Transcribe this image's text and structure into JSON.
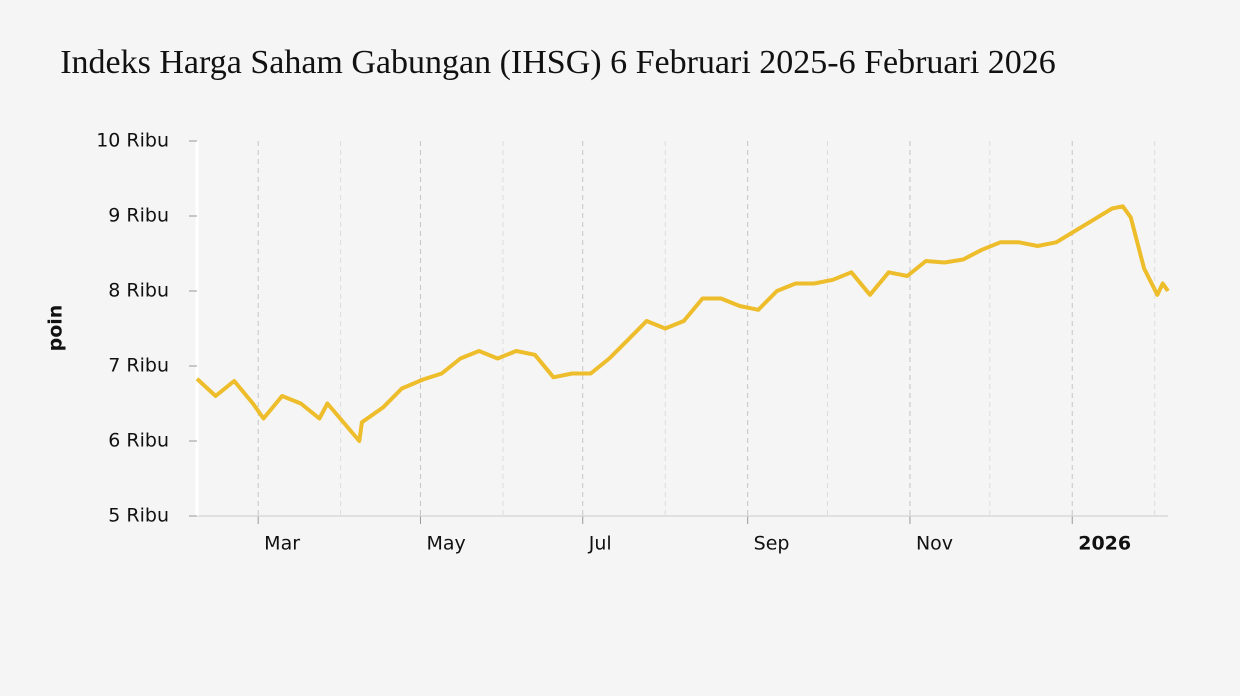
{
  "chart_data": {
    "type": "line",
    "title": "Indeks Harga Saham Gabungan (IHSG) 6 Februari 2025-6 Februari 2026",
    "ylabel": "poin",
    "color": "#eebd2b",
    "xlim": [
      "2025-02-06",
      "2026-02-06"
    ],
    "xticks": [
      {
        "value": "2025-03-01",
        "label": "Mar"
      },
      {
        "value": "2025-05-01",
        "label": "May"
      },
      {
        "value": "2025-07-01",
        "label": "Jul"
      },
      {
        "value": "2025-09-01",
        "label": "Sep"
      },
      {
        "value": "2025-11-01",
        "label": "Nov"
      },
      {
        "value": "2026-01-01",
        "label": "2026",
        "bold": true
      }
    ],
    "xminorticks": [
      "2025-04-01",
      "2025-06-01",
      "2025-08-01",
      "2025-10-01",
      "2025-12-01",
      "2026-02-01"
    ],
    "ylim": [
      5000,
      10000
    ],
    "yticks": [
      {
        "value": 5000,
        "label": "5 Ribu"
      },
      {
        "value": 6000,
        "label": "6 Ribu"
      },
      {
        "value": 7000,
        "label": "7 Ribu"
      },
      {
        "value": 8000,
        "label": "8 Ribu"
      },
      {
        "value": 9000,
        "label": "9 Ribu"
      },
      {
        "value": 10000,
        "label": "10 Ribu"
      }
    ],
    "x": [
      "2025-02-06",
      "2025-02-13",
      "2025-02-20",
      "2025-02-27",
      "2025-03-03",
      "2025-03-10",
      "2025-03-17",
      "2025-03-24",
      "2025-03-27",
      "2025-04-08",
      "2025-04-09",
      "2025-04-17",
      "2025-04-24",
      "2025-05-02",
      "2025-05-09",
      "2025-05-16",
      "2025-05-23",
      "2025-05-30",
      "2025-06-06",
      "2025-06-13",
      "2025-06-20",
      "2025-06-27",
      "2025-07-04",
      "2025-07-11",
      "2025-07-18",
      "2025-07-25",
      "2025-08-01",
      "2025-08-08",
      "2025-08-15",
      "2025-08-22",
      "2025-08-29",
      "2025-09-05",
      "2025-09-12",
      "2025-09-19",
      "2025-09-26",
      "2025-10-03",
      "2025-10-10",
      "2025-10-17",
      "2025-10-24",
      "2025-10-31",
      "2025-11-07",
      "2025-11-14",
      "2025-11-21",
      "2025-11-28",
      "2025-12-05",
      "2025-12-12",
      "2025-12-19",
      "2025-12-26",
      "2026-01-02",
      "2026-01-09",
      "2026-01-16",
      "2026-01-20",
      "2026-01-23",
      "2026-01-28",
      "2026-02-02",
      "2026-02-04",
      "2026-02-06"
    ],
    "values": [
      6830,
      6600,
      6800,
      6500,
      6300,
      6600,
      6500,
      6300,
      6500,
      6000,
      6250,
      6450,
      6700,
      6820,
      6900,
      7100,
      7200,
      7100,
      7200,
      7150,
      6850,
      6900,
      6900,
      7100,
      7350,
      7600,
      7500,
      7600,
      7900,
      7900,
      7800,
      7750,
      8000,
      8100,
      8100,
      8150,
      8250,
      7950,
      8250,
      8200,
      8400,
      8380,
      8420,
      8550,
      8650,
      8650,
      8600,
      8650,
      8800,
      8950,
      9100,
      9130,
      8980,
      8300,
      7950,
      8100,
      8000
    ]
  }
}
